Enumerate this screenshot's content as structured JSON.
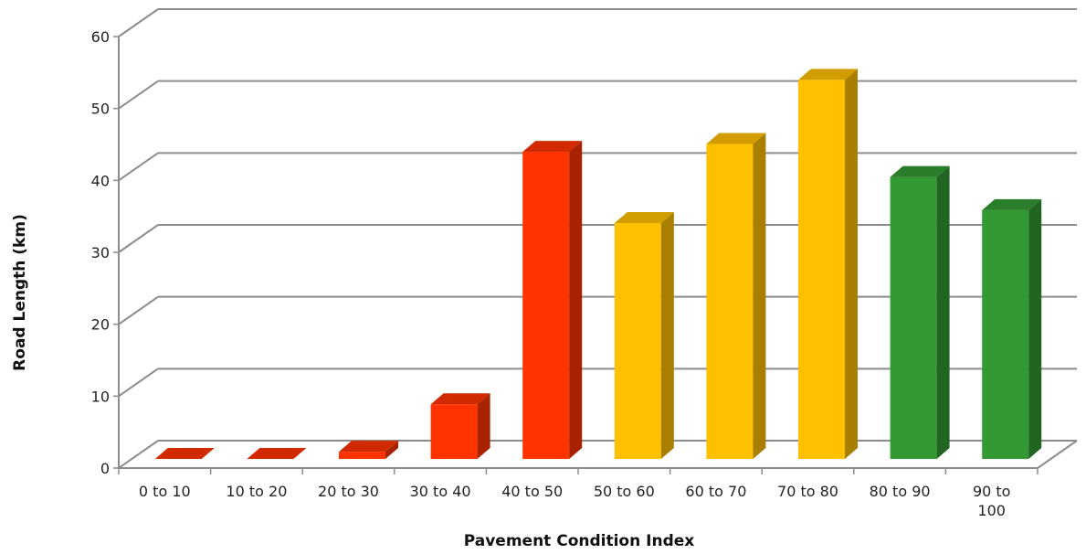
{
  "chart_data": {
    "type": "bar",
    "title": "",
    "xlabel": "Pavement Condition Index",
    "ylabel": "Road Length (km)",
    "ylim": [
      0,
      60
    ],
    "yticks": [
      "0",
      "10",
      "20",
      "30",
      "40",
      "50",
      "60"
    ],
    "grid": true,
    "categories": [
      "0 to 10",
      "10 to 20",
      "20 to 30",
      "30 to 40",
      "40 to 50",
      "50 to 60",
      "60 to 70",
      "70 to 80",
      "80 to 90",
      "90 to 100"
    ],
    "category_lines": [
      [
        "0 to 10"
      ],
      [
        "10 to 20"
      ],
      [
        "20 to 30"
      ],
      [
        "30 to 40"
      ],
      [
        "40 to 50"
      ],
      [
        "50 to 60"
      ],
      [
        "60 to 70"
      ],
      [
        "70 to 80"
      ],
      [
        "80 to 90"
      ],
      [
        "90 to",
        "100"
      ]
    ],
    "values": [
      0,
      0,
      1,
      7.6,
      42.7,
      32.8,
      43.8,
      52.7,
      39.2,
      34.6
    ],
    "colors": [
      "#ff3300",
      "#ff3300",
      "#ff3300",
      "#ff3300",
      "#ff3300",
      "#ffc000",
      "#ffc000",
      "#ffc000",
      "#339933",
      "#339933"
    ]
  }
}
